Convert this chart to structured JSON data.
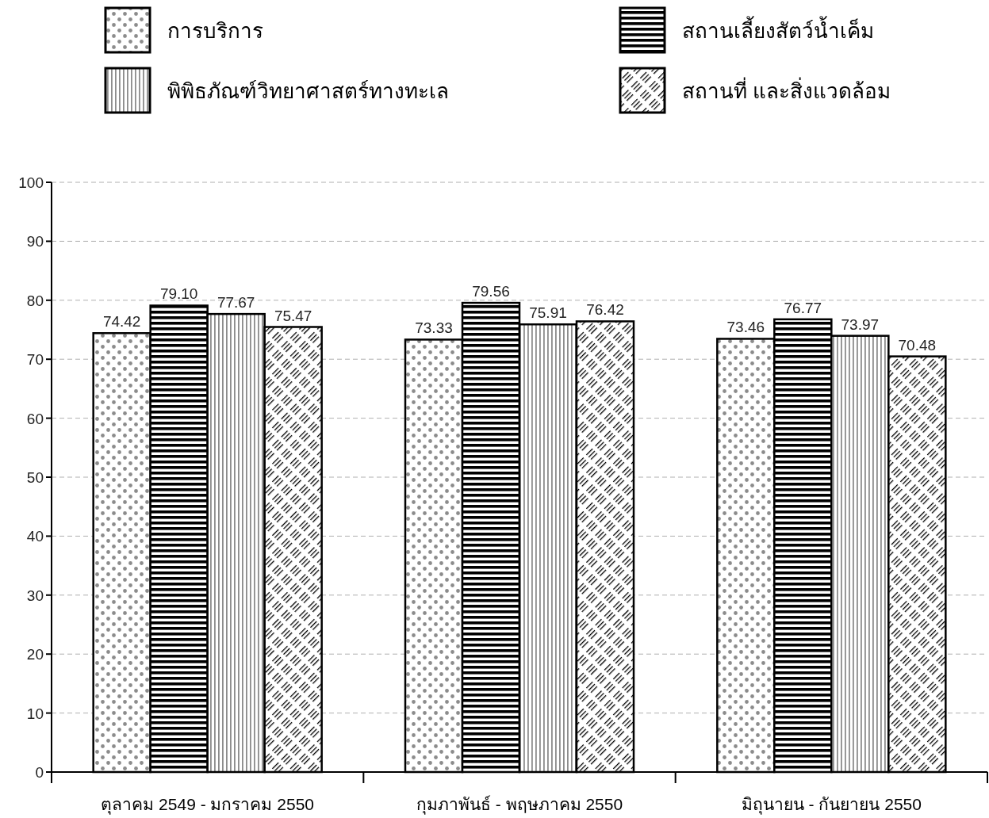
{
  "chart_data": {
    "type": "bar",
    "categories": [
      "ตุลาคม 2549 - มกราคม 2550",
      "กุมภาพันธ์ - พฤษภาคม 2550",
      "มิถุนายน - กันยายน 2550"
    ],
    "series": [
      {
        "name": "การบริการ",
        "color": "#000000",
        "values": [
          74.42,
          73.33,
          73.46
        ],
        "value_labels": [
          "74.42",
          "73.33",
          "73.46"
        ]
      },
      {
        "name": "สถานเลี้ยงสัตว์น้ำเค็ม",
        "color": "#000000",
        "values": [
          79.1,
          79.56,
          76.77
        ],
        "value_labels": [
          "79.10",
          "79.56",
          "76.77"
        ]
      },
      {
        "name": "พิพิธภัณฑ์วิทยาศาสตร์ทางทะเล",
        "color": "#000000",
        "values": [
          77.67,
          75.91,
          73.97
        ],
        "value_labels": [
          "77.67",
          "75.91",
          "73.97"
        ]
      },
      {
        "name": "สถานที่ และสิ่งแวดล้อม",
        "color": "#000000",
        "values": [
          75.47,
          76.42,
          70.48
        ],
        "value_labels": [
          "75.47",
          "76.42",
          "70.48"
        ]
      }
    ],
    "ylim": [
      0,
      100
    ],
    "yticks": [
      0,
      10,
      20,
      30,
      40,
      50,
      60,
      70,
      80,
      90,
      100
    ],
    "grid": "y",
    "legend": "top"
  }
}
